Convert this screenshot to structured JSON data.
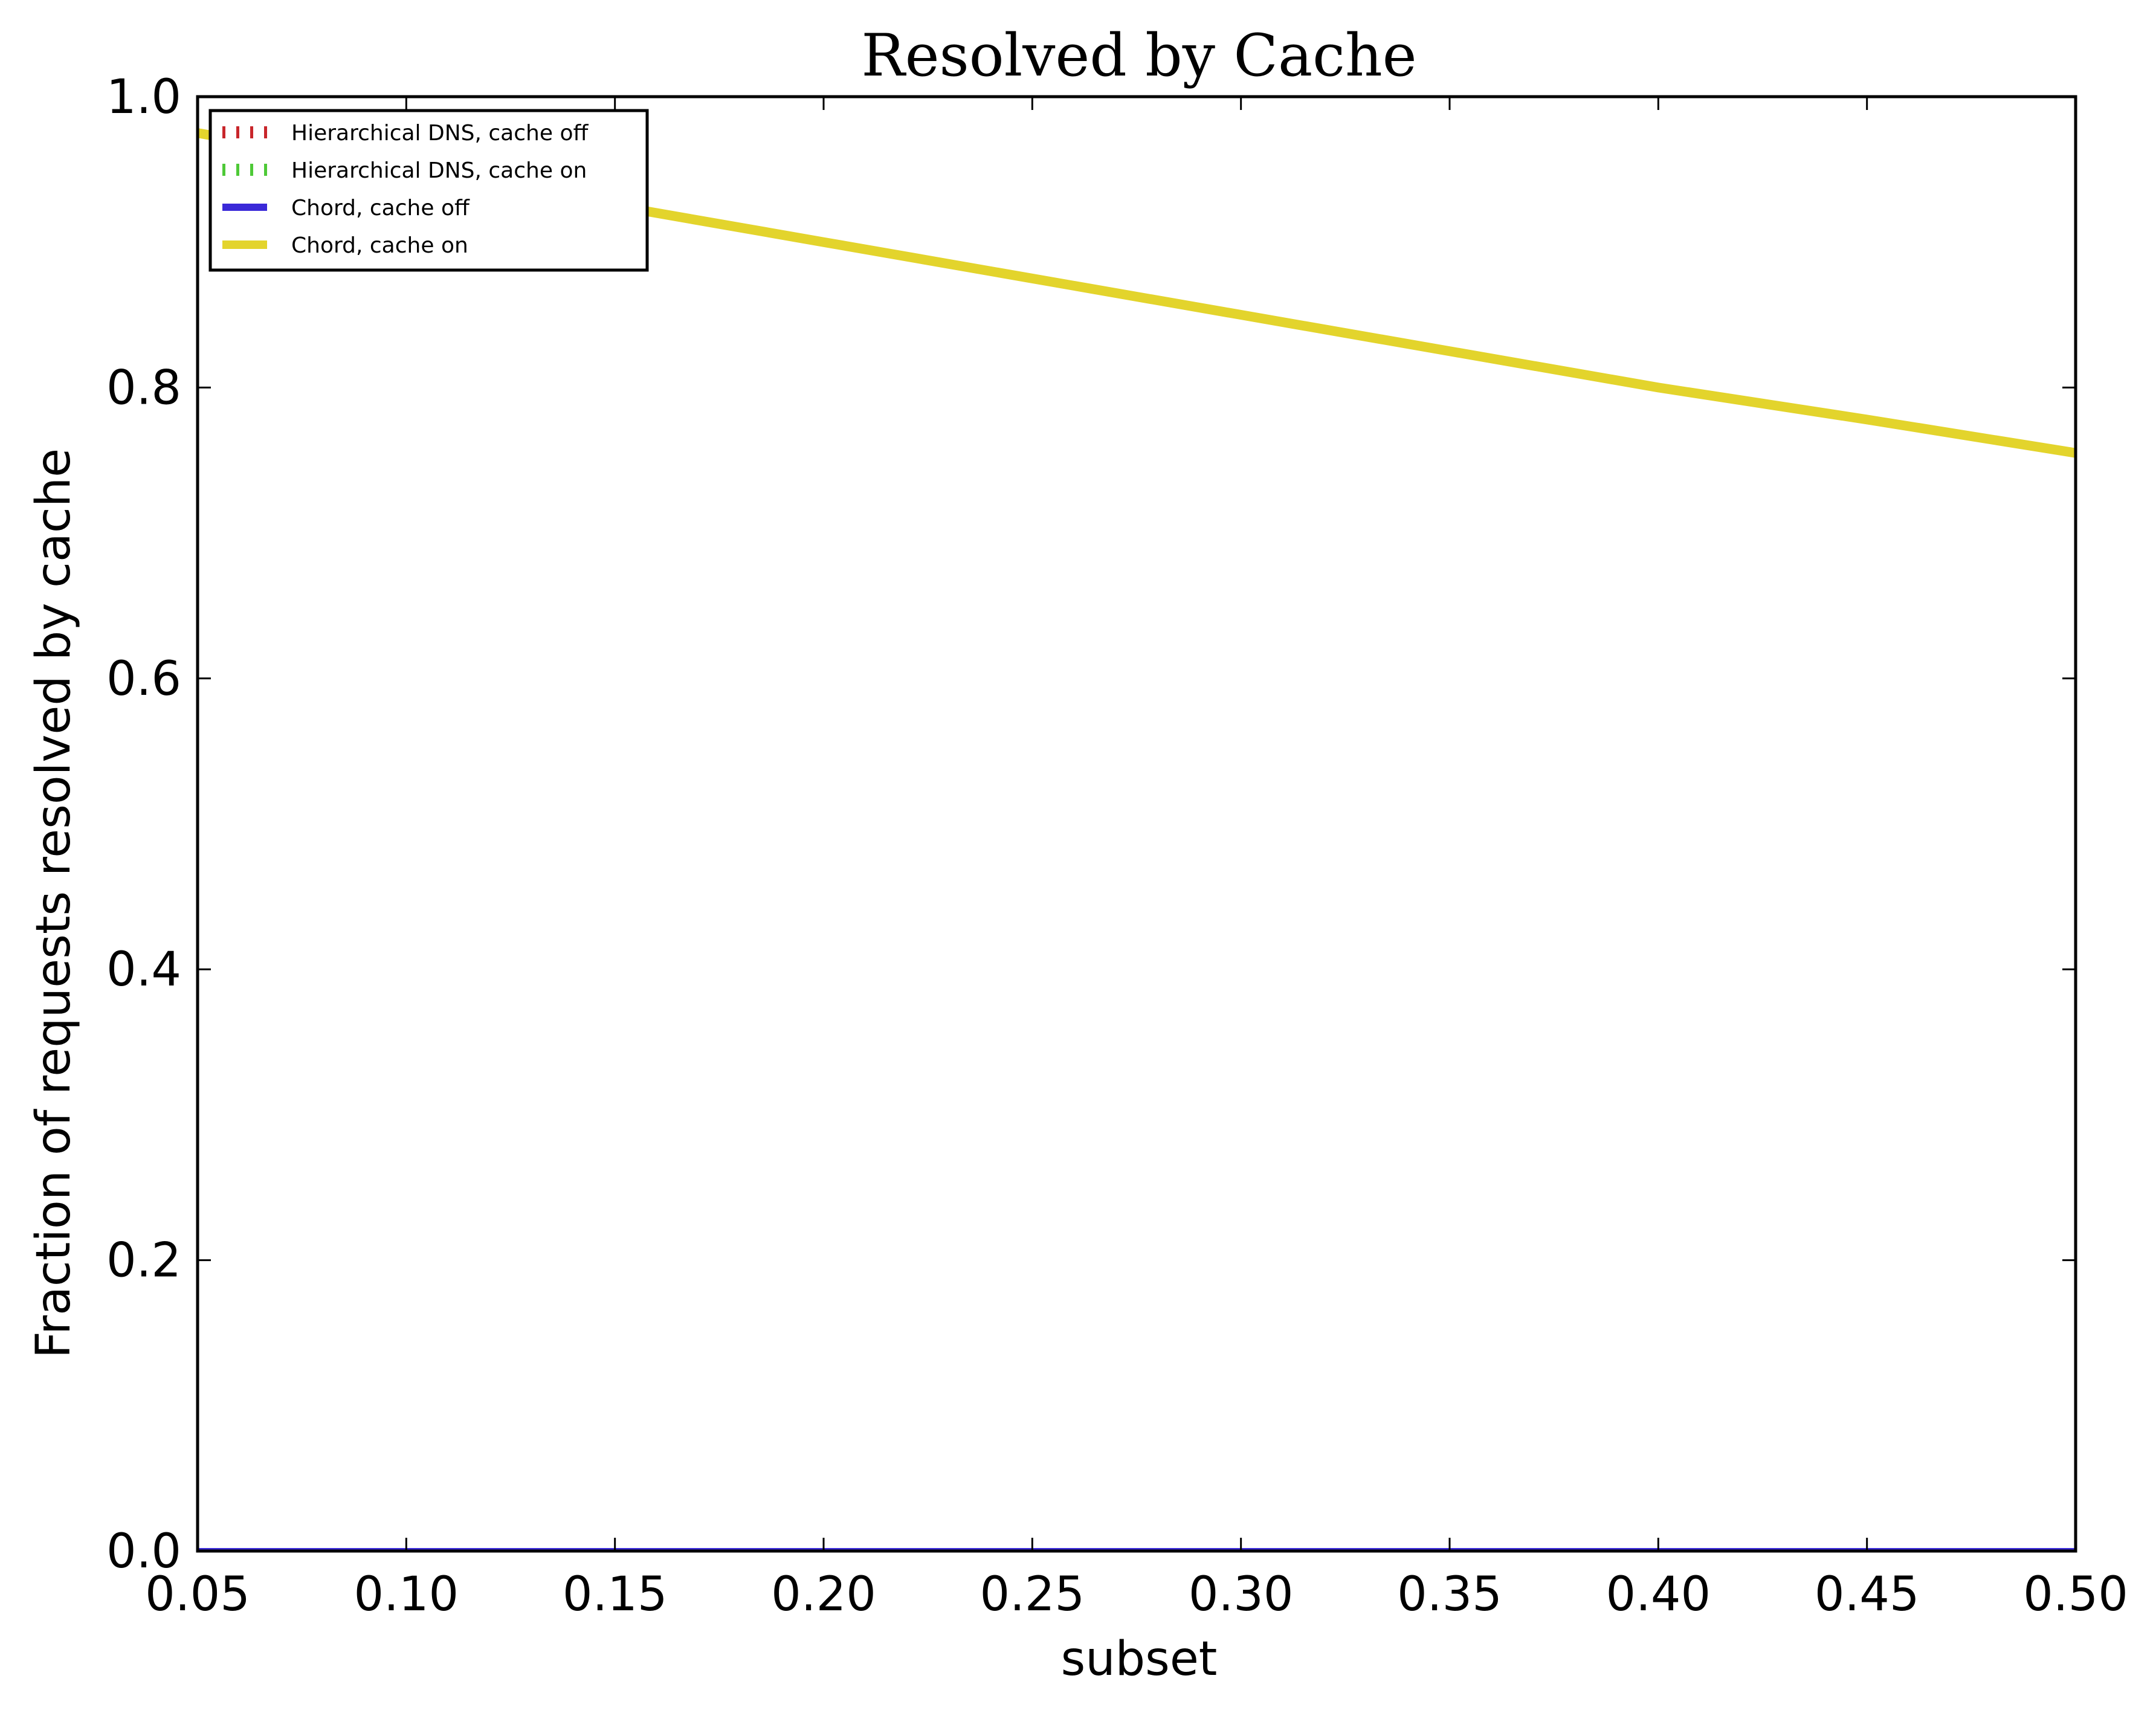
{
  "chart_data": {
    "type": "line",
    "title": "Resolved by Cache",
    "xlabel": "subset",
    "ylabel": "Fraction of requests resolved by cache",
    "xlim": [
      0.05,
      0.5
    ],
    "ylim": [
      0.0,
      1.0
    ],
    "xticks": [
      "0.05",
      "0.10",
      "0.15",
      "0.20",
      "0.25",
      "0.30",
      "0.35",
      "0.40",
      "0.45",
      "0.50"
    ],
    "yticks": [
      "0.0",
      "0.2",
      "0.4",
      "0.6",
      "0.8",
      "1.0"
    ],
    "grid": false,
    "legend_position": "top-left",
    "series": [
      {
        "name": "Hierarchical DNS, cache off",
        "color": "#c8262b",
        "style": "dotted",
        "x": [
          0.05,
          0.5
        ],
        "y": [
          0.0,
          0.0
        ]
      },
      {
        "name": "Hierarchical DNS, cache on",
        "color": "#4ec937",
        "style": "dotted",
        "x": [
          0.05,
          0.5
        ],
        "y": [
          0.0,
          0.0
        ]
      },
      {
        "name": "Chord, cache off",
        "color": "#3a29d8",
        "style": "solid",
        "x": [
          0.05,
          0.5
        ],
        "y": [
          0.0,
          0.0
        ]
      },
      {
        "name": "Chord, cache on",
        "color": "#e3d42c",
        "style": "solid",
        "x": [
          0.05,
          0.1,
          0.15,
          0.2,
          0.25,
          0.3,
          0.35,
          0.4,
          0.45,
          0.5
        ],
        "y": [
          0.975,
          0.95,
          0.925,
          0.9,
          0.875,
          0.85,
          0.825,
          0.8,
          0.778,
          0.755
        ]
      }
    ]
  }
}
